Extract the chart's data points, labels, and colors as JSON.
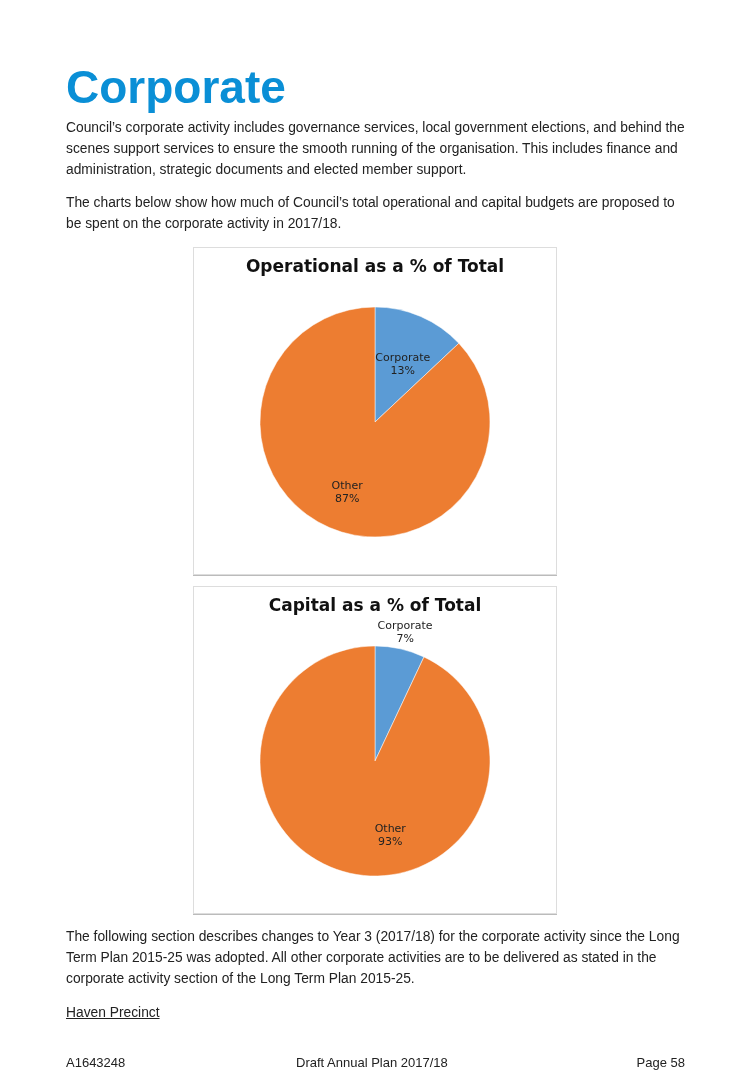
{
  "chart_data": [
    {
      "type": "pie",
      "title": "Operational as a % of Total",
      "categories": [
        "Corporate",
        "Other"
      ],
      "values": [
        13,
        87
      ],
      "colors": [
        "#5b9bd5",
        "#ed7d31"
      ],
      "value_labels": [
        "13%",
        "87%"
      ],
      "annotations": [
        "Corporate",
        "Council’s corporate activity includes governance services, local government elections, and behind the scenes support services to ensure the smooth running of the organisation. This includes finance and administration, strategic documents and elected member support.",
        "The charts below show how much of Council’s total operational and capital budgets are proposed to be spent on the corporate activity in 2017/18."
      ]
    },
    {
      "type": "pie",
      "title": "Capital as a % of Total",
      "categories": [
        "Corporate",
        "Other"
      ],
      "values": [
        7,
        93
      ],
      "colors": [
        "#5b9bd5",
        "#ed7d31"
      ],
      "value_labels": [
        "7%",
        "93%"
      ],
      "annotations": [
        "The following section describes changes to Year 3 (2017/18) for the corporate activity since the Long Term Plan 2015-25 was adopted. All other corporate activities are to be delivered as stated in the corporate activity section of the Long Term Plan 2015-25.",
        "Haven Precinct",
        "A1643248",
        "Draft Annual Plan 2017/18",
        "Page 58"
      ]
    }
  ]
}
